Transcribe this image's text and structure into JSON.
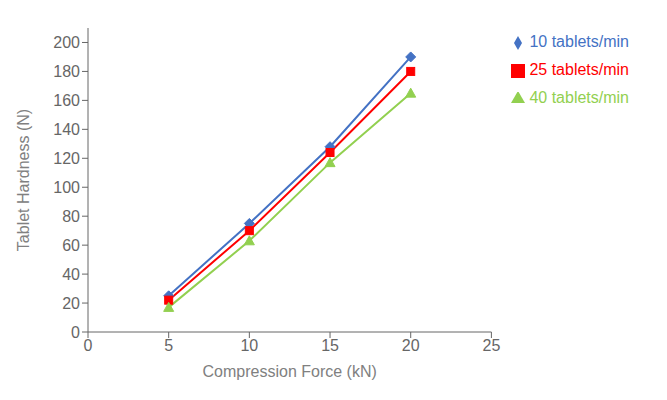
{
  "chart_data": {
    "type": "line",
    "xlabel": "Compression Force (kN)",
    "ylabel": "Tablet Hardness (N)",
    "x": [
      5,
      10,
      15,
      20
    ],
    "series": [
      {
        "name": "10 tablets/min",
        "color": "#4472C4",
        "marker": "diamond",
        "values": [
          25,
          75,
          128,
          190
        ]
      },
      {
        "name": "25 tablets/min",
        "color": "#FF0000",
        "marker": "square",
        "values": [
          22,
          70,
          124,
          180
        ]
      },
      {
        "name": "40 tablets/min",
        "color": "#92D050",
        "marker": "triangle",
        "values": [
          17,
          63,
          117,
          165
        ]
      }
    ],
    "xlim": [
      0,
      25
    ],
    "ylim": [
      0,
      210
    ],
    "xticks": [
      0,
      5,
      10,
      15,
      20,
      25
    ],
    "yticks": [
      0,
      20,
      40,
      60,
      80,
      100,
      120,
      140,
      160,
      180,
      200
    ],
    "grid": false,
    "legend": "right"
  }
}
